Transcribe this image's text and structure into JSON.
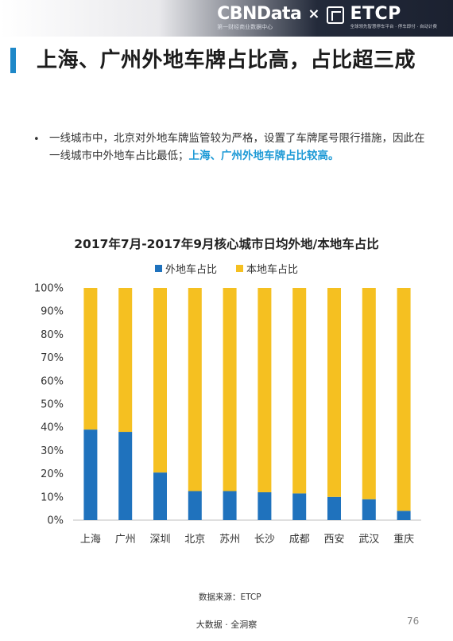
{
  "brand": {
    "cbndata": "CBNData",
    "cbndata_sub": "第一财经商业数据中心",
    "separator": "×",
    "etcp": "ETCP",
    "etcp_sub": "全球领先智慧停车平台 · 停车即付 · 自动计费"
  },
  "title": "上海、广州外地车牌占比高，占比超三成",
  "bullet": {
    "marker": "•",
    "text": "一线城市中，北京对外地车牌监管较为严格，设置了车牌尾号限行措施，因此在一线城市中外地车占比最低；",
    "highlight": "上海、广州外地车牌占比较高。"
  },
  "chart_data": {
    "type": "bar",
    "stacked": true,
    "title": "2017年7月-2017年9月核心城市日均外地/本地车占比",
    "categories": [
      "上海",
      "广州",
      "深圳",
      "北京",
      "苏州",
      "长沙",
      "成都",
      "西安",
      "武汉",
      "重庆"
    ],
    "series": [
      {
        "name": "外地车占比",
        "color": "#1f72bd",
        "values": [
          39,
          38,
          20.5,
          12.5,
          12.5,
          12,
          11.5,
          10,
          9,
          4
        ]
      },
      {
        "name": "本地车占比",
        "color": "#f5c021",
        "values": [
          61,
          62,
          79.5,
          87.5,
          87.5,
          88,
          88.5,
          90,
          91,
          96
        ]
      }
    ],
    "ylim": [
      0,
      100
    ],
    "yticks": [
      "0%",
      "10%",
      "20%",
      "30%",
      "40%",
      "50%",
      "60%",
      "70%",
      "80%",
      "90%",
      "100%"
    ],
    "legend_position": "top",
    "grid": false
  },
  "source": "数据来源：ETCP",
  "footer": "大数据 · 全洞察",
  "page_number": "76"
}
